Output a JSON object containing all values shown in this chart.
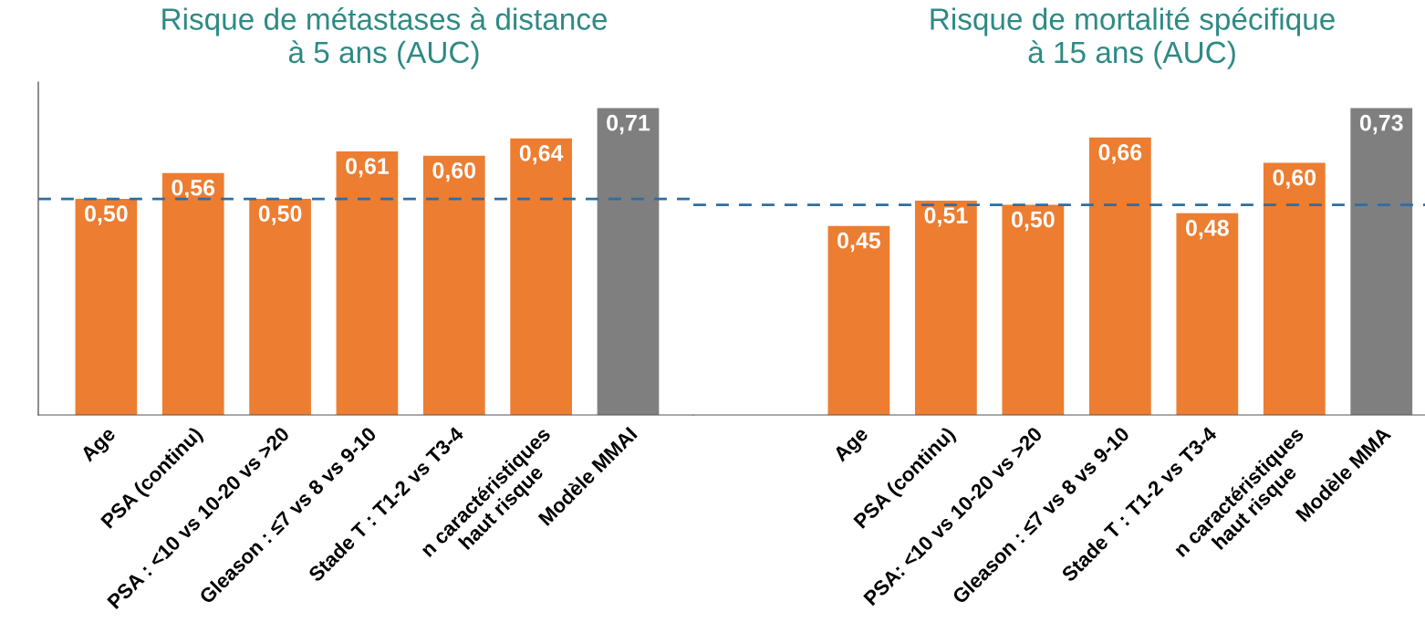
{
  "chart_data": [
    {
      "type": "bar",
      "title": "Risque de métastases à distance\nà 5 ans (AUC)",
      "categories": [
        "Age",
        "PSA (continu)",
        "PSA : <10 vs 10-20 vs >20",
        "Gleason : ≤7 vs 8 vs 9-10",
        "Stade T : T1-2 vs T3-4",
        "n caractéristiques\nhaut risque",
        "Modèle MMAI"
      ],
      "values": [
        0.5,
        0.56,
        0.5,
        0.61,
        0.6,
        0.64,
        0.71
      ],
      "value_labels": [
        "0,50",
        "0,56",
        "0,50",
        "0,61",
        "0,60",
        "0,64",
        "0,71"
      ],
      "colors": [
        "#ed7d31",
        "#ed7d31",
        "#ed7d31",
        "#ed7d31",
        "#ed7d31",
        "#ed7d31",
        "#7f7f7f"
      ],
      "tick_labels": "x",
      "grid": false,
      "ref_lines": [
        {
          "axis": "y",
          "value": 0.5,
          "color": "#2e6da4",
          "line_style": "dashed"
        }
      ]
    },
    {
      "type": "bar",
      "title": "Risque de mortalité spécifique\nà 15 ans (AUC)",
      "categories": [
        "Age",
        "PSA (continu)",
        "PSA: <10 vs 10-20 vs >20",
        "Gleason : ≤7 vs 8 vs 9-10",
        "Stade T : T1-2 vs T3-4",
        "n caractéristiques\nhaut risque",
        "Modèle MMA"
      ],
      "values": [
        0.45,
        0.51,
        0.5,
        0.66,
        0.48,
        0.6,
        0.73
      ],
      "value_labels": [
        "0,45",
        "0,51",
        "0,50",
        "0,66",
        "0,48",
        "0,60",
        "0,73"
      ],
      "colors": [
        "#ed7d31",
        "#ed7d31",
        "#ed7d31",
        "#ed7d31",
        "#ed7d31",
        "#ed7d31",
        "#7f7f7f"
      ],
      "tick_labels": "x",
      "grid": false,
      "ref_lines": [
        {
          "axis": "y",
          "value": 0.5,
          "color": "#2e6da4",
          "line_style": "dashed"
        }
      ]
    }
  ]
}
